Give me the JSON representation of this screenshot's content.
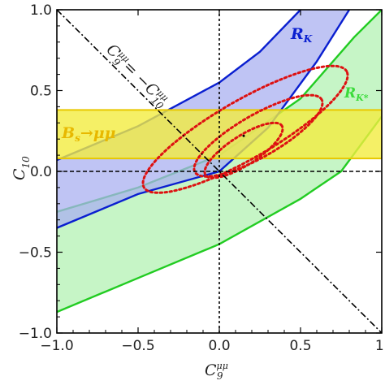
{
  "chart_data": {
    "type": "area",
    "title": "",
    "x": {
      "symbol": "C",
      "sub": "9",
      "sup": "μμ",
      "range": [
        -1.0,
        1.0
      ],
      "ticks": [
        -1.0,
        -0.5,
        0.0,
        0.5,
        1.0
      ],
      "tick_labels": [
        "−1.0",
        "−0.5",
        "0.0",
        "0.5",
        "1."
      ]
    },
    "y": {
      "symbol": "C",
      "sub": "10",
      "range": [
        -1.0,
        1.0
      ],
      "ticks": [
        -1.0,
        -0.5,
        0.0,
        0.5,
        1.0
      ],
      "tick_labels": [
        "−1.0",
        "−0.5",
        "0.0",
        "0.5",
        "1.0"
      ]
    },
    "bands": [
      {
        "name": "R_K",
        "label_main": "R",
        "label_sub": "K",
        "color": "#0a1fd0",
        "fill": "#aab0f0",
        "opacity": 0.75,
        "lower": [
          [
            -1.0,
            -0.35
          ],
          [
            -0.5,
            -0.14
          ],
          [
            0.0,
            0.0
          ],
          [
            0.3,
            0.27
          ],
          [
            0.6,
            0.68
          ],
          [
            0.8,
            1.0
          ]
        ],
        "upper": [
          [
            -1.0,
            0.07
          ],
          [
            -0.5,
            0.28
          ],
          [
            0.0,
            0.55
          ],
          [
            0.25,
            0.74
          ],
          [
            0.5,
            1.0
          ]
        ]
      },
      {
        "name": "R_K*",
        "label_main": "R",
        "label_sub": "K*",
        "color": "#22cc22",
        "fill": "#a8f0a8",
        "opacity": 0.65,
        "lower": [
          [
            -1.0,
            -0.87
          ],
          [
            -0.5,
            -0.66
          ],
          [
            0.0,
            -0.45
          ],
          [
            0.5,
            -0.17
          ],
          [
            0.75,
            0.0
          ],
          [
            1.0,
            0.34
          ]
        ],
        "upper": [
          [
            -1.0,
            -0.25
          ],
          [
            -0.5,
            -0.1
          ],
          [
            0.0,
            0.1
          ],
          [
            0.5,
            0.45
          ],
          [
            0.83,
            0.83
          ],
          [
            1.0,
            1.0
          ]
        ]
      },
      {
        "name": "Bs→μμ",
        "label_main": "B",
        "label_sub": "s",
        "label_rest": "→μμ",
        "color": "#e8c800",
        "fill": "#f2ec40",
        "opacity": 0.8,
        "ymin": 0.08,
        "ymax": 0.38
      }
    ],
    "contours": [
      {
        "center": [
          0.15,
          0.13
        ],
        "a": 0.28,
        "b": 0.09,
        "angle_deg": 33,
        "color": "#dd1111"
      },
      {
        "center": [
          0.16,
          0.26
        ],
        "a": 0.72,
        "b": 0.18,
        "angle_deg": 30,
        "color": "#dd1111"
      },
      {
        "center": [
          0.24,
          0.22
        ],
        "a": 0.45,
        "b": 0.13,
        "angle_deg": 30,
        "color": "#dd1111"
      }
    ],
    "best_fit": [
      0.15,
      0.22
    ],
    "line": {
      "label_lhs": "C",
      "lhs_sub": "9",
      "lhs_sup": "μμ",
      "label_rhs": "−C",
      "rhs_sub": "10",
      "rhs_sup": "μμ",
      "slope": -1
    },
    "grid": false
  }
}
